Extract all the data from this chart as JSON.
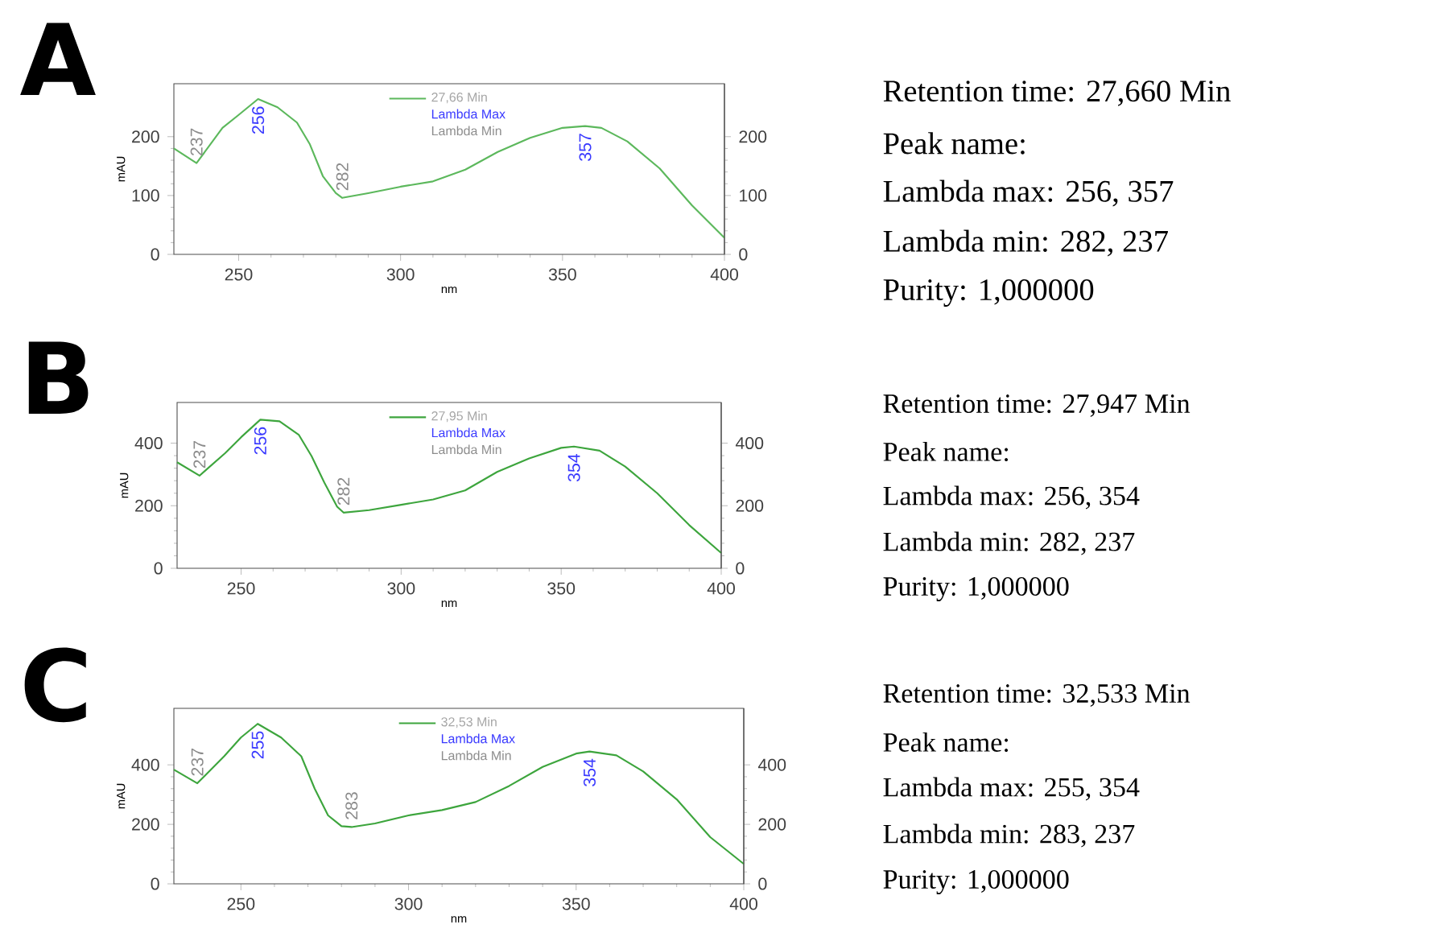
{
  "chart_data": [
    {
      "type": "line",
      "title": "A",
      "xlabel": "nm",
      "ylabel": "mAU",
      "xlim": [
        230,
        400
      ],
      "xticks": [
        250,
        300,
        350,
        400
      ],
      "ylim": [
        0,
        290
      ],
      "yticks": [
        0,
        100,
        200
      ],
      "y2lim": [
        0,
        290
      ],
      "y2ticks": [
        0,
        100,
        200
      ],
      "legend": "top",
      "x": [
        230,
        237,
        245,
        250,
        256,
        262,
        268,
        272,
        276,
        280,
        282,
        290,
        300,
        310,
        320,
        330,
        340,
        350,
        357,
        362,
        370,
        380,
        390,
        400
      ],
      "series": [
        {
          "name": "27,66 Min",
          "color": "#5cb85c",
          "values": [
            180,
            155,
            215,
            237,
            264,
            250,
            224,
            187,
            133,
            104,
            96,
            104,
            115,
            124,
            144,
            174,
            198,
            215,
            218,
            215,
            192,
            146,
            83,
            28
          ]
        }
      ],
      "annotations": [
        "Lambda Max",
        "Lambda Min",
        {
          "text": "237",
          "x": 237,
          "y": 155
        },
        {
          "text": "256",
          "x": 256,
          "y": 264
        },
        {
          "text": "282",
          "x": 282,
          "y": 96
        },
        {
          "text": "357",
          "x": 357,
          "y": 218
        }
      ]
    },
    {
      "type": "other",
      "annotations": [
        "Retention time: 27,660 Min",
        "Peak name:",
        "Lambda max: 256, 357",
        "Lambda min: 282, 237",
        "Purity: 1,000000"
      ]
    },
    {
      "type": "line",
      "title": "B",
      "xlabel": "nm",
      "ylabel": "mAU",
      "xlim": [
        230,
        400
      ],
      "xticks": [
        250,
        300,
        350,
        400
      ],
      "ylim": [
        0,
        530
      ],
      "yticks": [
        0,
        200,
        400
      ],
      "y2lim": [
        0,
        530
      ],
      "y2ticks": [
        0,
        200,
        400
      ],
      "legend": "top",
      "x": [
        230,
        237,
        245,
        250,
        256,
        262,
        268,
        272,
        276,
        280,
        282,
        290,
        300,
        310,
        320,
        330,
        340,
        350,
        354,
        362,
        370,
        380,
        390,
        400
      ],
      "series": [
        {
          "name": "27,95 Min",
          "color": "#3da53d",
          "values": [
            339,
            296,
            368,
            419,
            475,
            470,
            427,
            359,
            274,
            197,
            178,
            186,
            203,
            220,
            249,
            308,
            351,
            385,
            389,
            376,
            325,
            240,
            138,
            49
          ]
        }
      ],
      "annotations": [
        "Lambda Max",
        "Lambda Min",
        {
          "text": "237",
          "x": 237,
          "y": 296
        },
        {
          "text": "256",
          "x": 256,
          "y": 475
        },
        {
          "text": "282",
          "x": 282,
          "y": 178
        },
        {
          "text": "354",
          "x": 354,
          "y": 389
        }
      ]
    },
    {
      "type": "other",
      "annotations": [
        "Retention time: 27,947 Min",
        "Peak name:",
        "Lambda max: 256, 354",
        "Lambda min: 282, 237",
        "Purity: 1,000000"
      ]
    },
    {
      "type": "line",
      "title": "C",
      "xlabel": "nm",
      "ylabel": "mAU",
      "xlim": [
        230,
        400
      ],
      "xticks": [
        250,
        300,
        350,
        400
      ],
      "ylim": [
        0,
        590
      ],
      "yticks": [
        0,
        200,
        400
      ],
      "y2lim": [
        0,
        590
      ],
      "y2ticks": [
        0,
        200,
        400
      ],
      "legend": "top",
      "x": [
        230,
        237,
        245,
        250,
        255,
        262,
        268,
        272,
        276,
        280,
        283,
        290,
        300,
        310,
        320,
        330,
        340,
        350,
        354,
        362,
        370,
        380,
        390,
        400
      ],
      "series": [
        {
          "name": "32,53 Min",
          "color": "#3da53d",
          "values": [
            384,
            338,
            429,
            492,
            538,
            492,
            429,
            320,
            230,
            194,
            191,
            203,
            230,
            248,
            275,
            329,
            393,
            438,
            445,
            432,
            378,
            284,
            157,
            67
          ]
        }
      ],
      "annotations": [
        "Lambda Max",
        "Lambda Min",
        {
          "text": "237",
          "x": 237,
          "y": 338
        },
        {
          "text": "255",
          "x": 255,
          "y": 538
        },
        {
          "text": "283",
          "x": 283,
          "y": 191
        },
        {
          "text": "354",
          "x": 354,
          "y": 445
        }
      ]
    },
    {
      "type": "other",
      "annotations": [
        "Retention time: 32,533 Min",
        "Peak name:",
        "Lambda max: 255, 354",
        "Lambda min: 283, 237",
        "Purity: 1,000000"
      ]
    }
  ]
}
